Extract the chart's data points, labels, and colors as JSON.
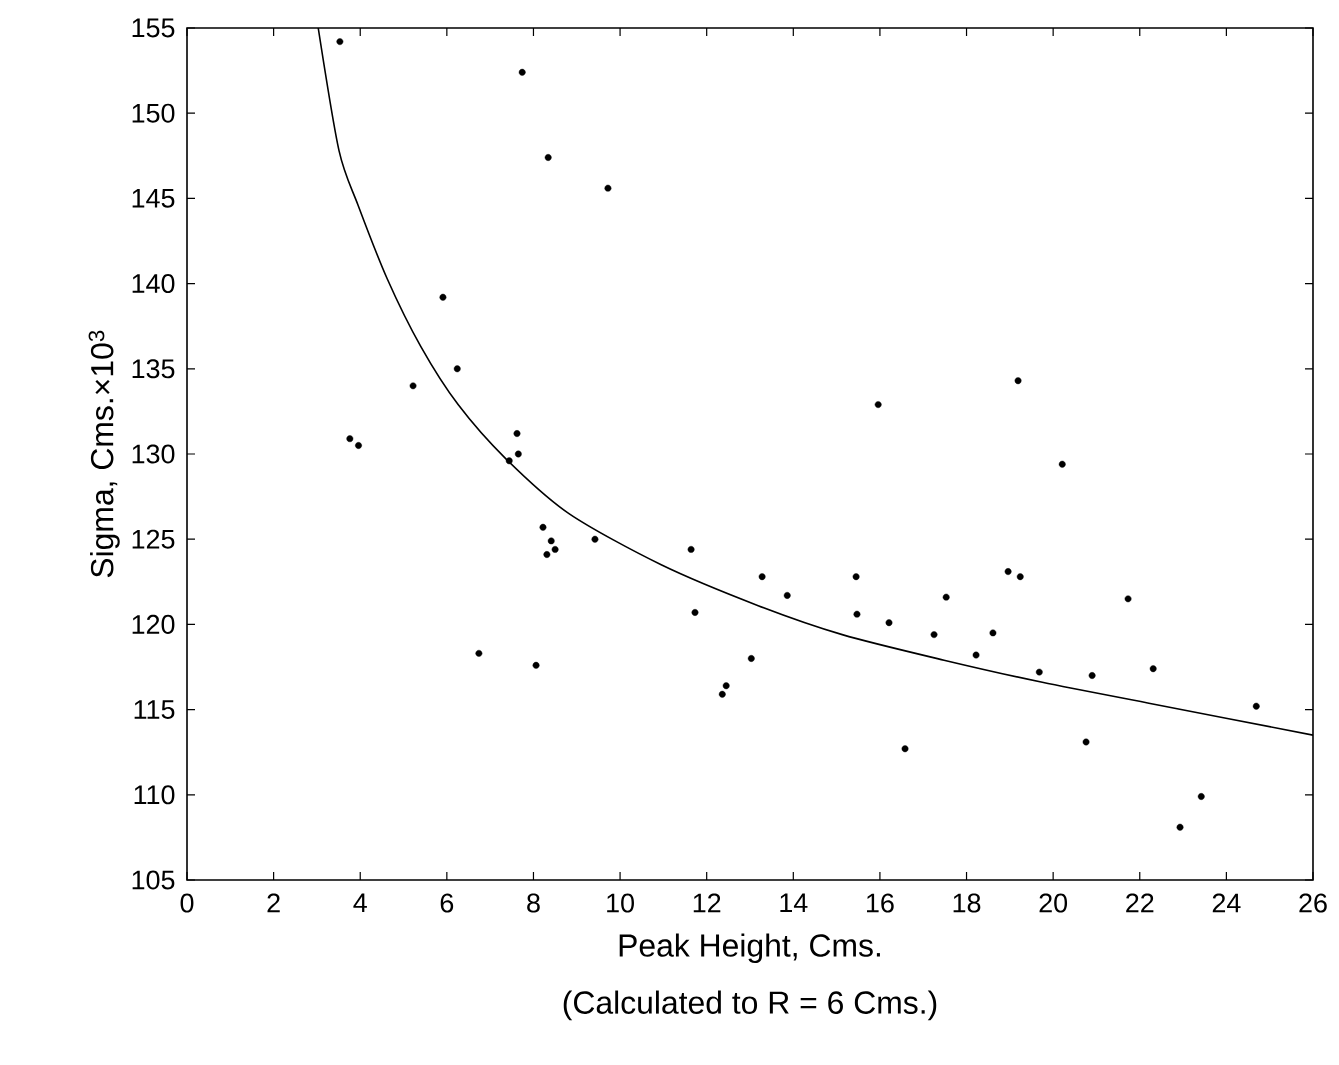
{
  "chart_data": {
    "type": "scatter",
    "xlabel": "Peak Height, Cms.",
    "ylabel": "Sigma, Cms.×10$^{3}$",
    "annotations": [
      "(Calculated to R = 6 Cms.)"
    ],
    "xlim": [
      0,
      26
    ],
    "ylim": [
      105,
      155
    ],
    "xticks": [
      0,
      2,
      4,
      6,
      8,
      10,
      12,
      14,
      16,
      18,
      20,
      22,
      24,
      26
    ],
    "yticks": [
      105,
      110,
      115,
      120,
      125,
      130,
      135,
      140,
      145,
      150,
      155
    ],
    "grid": false,
    "marker": "circle",
    "series": [
      {
        "color": "#000000",
        "x": [
          3.53,
          7.74,
          8.34,
          9.72,
          5.91,
          6.24,
          5.22,
          3.76,
          3.96,
          7.62,
          7.65,
          7.44,
          8.22,
          8.41,
          8.31,
          8.5,
          9.42,
          6.74,
          8.06,
          11.64,
          11.73,
          12.36,
          12.45,
          13.03,
          13.28,
          13.86,
          15.45,
          15.47,
          15.96,
          16.21,
          16.58,
          17.25,
          17.53,
          18.22,
          18.61,
          18.96,
          19.24,
          19.19,
          19.68,
          20.21,
          20.76,
          20.9,
          21.73,
          22.31,
          22.93,
          23.42,
          24.69
        ],
        "values": [
          154.2,
          152.4,
          147.4,
          145.6,
          139.2,
          135.0,
          134.0,
          130.9,
          130.5,
          131.2,
          130.0,
          129.6,
          125.7,
          124.9,
          124.1,
          124.4,
          125.0,
          118.3,
          117.6,
          124.4,
          120.7,
          115.9,
          116.4,
          118.0,
          122.8,
          121.7,
          122.8,
          120.6,
          132.9,
          120.1,
          112.7,
          119.4,
          121.6,
          118.2,
          119.5,
          123.1,
          122.8,
          134.3,
          117.2,
          129.4,
          113.1,
          117.0,
          121.5,
          117.4,
          108.1,
          109.9,
          115.2
        ]
      },
      {
        "type": "line",
        "color": "#000000",
        "marker": "none",
        "x": [
          3.03,
          3.51,
          3.95,
          4.62,
          5.4,
          6.26,
          7.37,
          8.82,
          10.95,
          13.19,
          15.13,
          17.48,
          19.75,
          22.36,
          26
        ],
        "values": [
          155,
          147.8,
          144.6,
          140.3,
          136.3,
          132.9,
          129.7,
          126.5,
          123.5,
          121.1,
          119.4,
          117.9,
          116.6,
          115.3,
          113.5
        ]
      }
    ]
  }
}
